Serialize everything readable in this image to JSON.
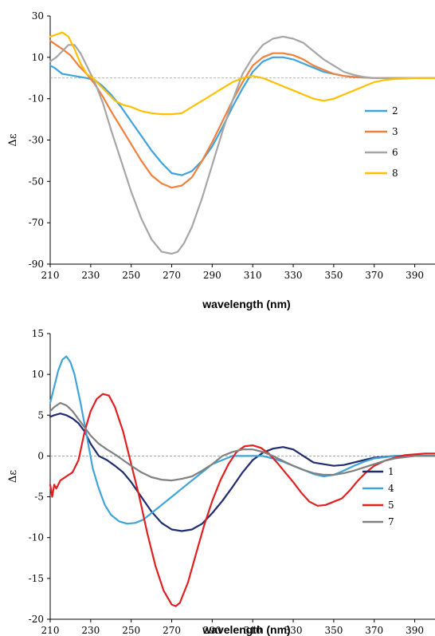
{
  "chart_data": [
    {
      "type": "line",
      "xlabel": "wavelength (nm)",
      "ylabel": "Δε",
      "xlim": [
        210,
        400
      ],
      "ylim": [
        -90,
        30
      ],
      "xticks": [
        210,
        230,
        250,
        270,
        290,
        310,
        330,
        350,
        370,
        390
      ],
      "yticks": [
        -90,
        -70,
        -50,
        -30,
        -10,
        10,
        30
      ],
      "zero_line": true,
      "legend_position": "right",
      "series": [
        {
          "name": "2",
          "color": "#3fa3dc",
          "x": [
            210,
            212,
            216,
            222,
            228,
            232,
            236,
            240,
            245,
            250,
            255,
            260,
            265,
            270,
            275,
            280,
            285,
            290,
            295,
            300,
            305,
            310,
            315,
            320,
            325,
            330,
            335,
            340,
            345,
            350,
            355,
            360,
            370,
            380,
            390,
            400
          ],
          "y": [
            6,
            5,
            2,
            1,
            0,
            -1,
            -4,
            -8,
            -14,
            -21,
            -28,
            -35,
            -41,
            -46,
            -47,
            -45,
            -40,
            -33,
            -24,
            -14,
            -5,
            3,
            8,
            10,
            10,
            9,
            7,
            5,
            3,
            2,
            1,
            0.5,
            0,
            0,
            0,
            0
          ]
        },
        {
          "name": "3",
          "color": "#f0803c",
          "x": [
            210,
            213,
            216,
            220,
            224,
            228,
            232,
            236,
            240,
            245,
            250,
            255,
            260,
            265,
            270,
            275,
            280,
            285,
            290,
            295,
            300,
            305,
            310,
            315,
            320,
            325,
            330,
            335,
            340,
            345,
            350,
            355,
            360,
            370,
            380,
            390,
            400
          ],
          "y": [
            18,
            16,
            14,
            11,
            6,
            2,
            -3,
            -9,
            -16,
            -24,
            -32,
            -40,
            -47,
            -51,
            -53,
            -52,
            -48,
            -40,
            -31,
            -21,
            -11,
            -2,
            6,
            10,
            12,
            12,
            11,
            9,
            6,
            4,
            2,
            1,
            0.5,
            0,
            0,
            0,
            0
          ]
        },
        {
          "name": "6",
          "color": "#a6a6a6",
          "x": [
            210,
            213,
            216,
            219,
            222,
            225,
            228,
            232,
            236,
            240,
            245,
            250,
            255,
            260,
            265,
            270,
            273,
            276,
            280,
            285,
            290,
            295,
            300,
            305,
            310,
            315,
            320,
            325,
            330,
            335,
            340,
            345,
            350,
            355,
            360,
            365,
            370,
            380,
            390,
            400
          ],
          "y": [
            8,
            10,
            13,
            16,
            16,
            12,
            6,
            -2,
            -12,
            -25,
            -40,
            -55,
            -68,
            -78,
            -84,
            -85,
            -84,
            -80,
            -72,
            -58,
            -42,
            -26,
            -11,
            2,
            10,
            16,
            19,
            20,
            19,
            17,
            13,
            9,
            6,
            3,
            1.5,
            0.5,
            0,
            0,
            0,
            0
          ]
        },
        {
          "name": "8",
          "color": "#ffc000",
          "x": [
            210,
            213,
            216,
            219,
            222,
            225,
            228,
            231,
            234,
            238,
            242,
            246,
            250,
            255,
            260,
            265,
            270,
            275,
            280,
            285,
            290,
            295,
            300,
            305,
            310,
            315,
            320,
            325,
            330,
            335,
            340,
            345,
            350,
            355,
            360,
            365,
            370,
            375,
            380,
            390,
            400
          ],
          "y": [
            20,
            21,
            22,
            20,
            14,
            7,
            2,
            0,
            -3,
            -7,
            -11,
            -13,
            -14,
            -16,
            -17,
            -17.5,
            -17.5,
            -17,
            -14,
            -11,
            -8,
            -5,
            -2,
            0,
            1,
            0,
            -2,
            -4,
            -6,
            -8,
            -10,
            -11,
            -10,
            -8,
            -6,
            -4,
            -2,
            -1,
            -0.5,
            0,
            0
          ]
        }
      ]
    },
    {
      "type": "line",
      "xlabel": "wavelength (nm)",
      "ylabel": "Δε",
      "xlim": [
        210,
        400
      ],
      "ylim": [
        -20,
        15
      ],
      "xticks": [
        210,
        230,
        250,
        270,
        290,
        310,
        330,
        350,
        370,
        390
      ],
      "yticks": [
        -20,
        -15,
        -10,
        -5,
        0,
        5,
        10,
        15
      ],
      "zero_line": true,
      "legend_position": "right",
      "series": [
        {
          "name": "1",
          "color": "#1f2d6e",
          "x": [
            210,
            212,
            215,
            218,
            221,
            224,
            227,
            230,
            234,
            238,
            242,
            246,
            250,
            255,
            260,
            265,
            270,
            275,
            280,
            285,
            290,
            295,
            300,
            305,
            310,
            315,
            320,
            325,
            330,
            335,
            340,
            345,
            350,
            355,
            360,
            365,
            370,
            375,
            380,
            390,
            400
          ],
          "y": [
            4.8,
            5,
            5.2,
            5,
            4.6,
            4,
            3,
            1.5,
            0,
            -0.5,
            -1.2,
            -2,
            -3.2,
            -5,
            -6.8,
            -8.2,
            -9,
            -9.2,
            -9,
            -8.3,
            -7,
            -5.5,
            -3.8,
            -2,
            -0.5,
            0.4,
            0.9,
            1.1,
            0.8,
            0,
            -0.8,
            -1,
            -1.2,
            -1.1,
            -0.8,
            -0.5,
            -0.2,
            -0.1,
            0,
            0,
            0
          ]
        },
        {
          "name": "4",
          "color": "#3fa3dc",
          "x": [
            210,
            212,
            214,
            216,
            218,
            220,
            222,
            225,
            228,
            231,
            234,
            237,
            240,
            244,
            248,
            252,
            256,
            260,
            265,
            270,
            275,
            280,
            285,
            290,
            295,
            300,
            305,
            310,
            315,
            320,
            325,
            330,
            335,
            340,
            345,
            350,
            355,
            360,
            365,
            370,
            380,
            390,
            400
          ],
          "y": [
            6.5,
            8.5,
            10.5,
            11.8,
            12.2,
            11.5,
            10,
            6.5,
            2.5,
            -1.5,
            -4,
            -6,
            -7.2,
            -8,
            -8.3,
            -8.2,
            -7.8,
            -7,
            -6,
            -5,
            -4,
            -3,
            -2,
            -1,
            -0.5,
            0,
            0,
            0,
            0,
            -0.3,
            -0.7,
            -1.2,
            -1.7,
            -2.2,
            -2.5,
            -2.3,
            -1.8,
            -1.2,
            -0.7,
            -0.3,
            0,
            0,
            0
          ]
        },
        {
          "name": "5",
          "color": "#e02020",
          "x": [
            210,
            211,
            212,
            213,
            215,
            218,
            221,
            224,
            227,
            230,
            233,
            236,
            239,
            242,
            246,
            250,
            254,
            258,
            262,
            266,
            270,
            272,
            274,
            278,
            282,
            286,
            290,
            294,
            298,
            302,
            306,
            310,
            314,
            318,
            322,
            326,
            330,
            334,
            338,
            342,
            346,
            350,
            354,
            358,
            362,
            366,
            370,
            375,
            380,
            385,
            390,
            395,
            400
          ],
          "y": [
            -3.5,
            -5,
            -3.5,
            -4,
            -3,
            -2.5,
            -2,
            -0.5,
            3,
            5.5,
            7,
            7.6,
            7.4,
            6,
            3,
            -1,
            -5,
            -9.5,
            -13.5,
            -16.5,
            -18.2,
            -18.4,
            -18,
            -15.5,
            -12,
            -8.5,
            -5.5,
            -3,
            -1,
            0.5,
            1.2,
            1.3,
            1,
            0.3,
            -0.8,
            -2,
            -3.2,
            -4.5,
            -5.6,
            -6.1,
            -6,
            -5.6,
            -5.2,
            -4.2,
            -3,
            -2,
            -1.2,
            -0.6,
            -0.2,
            0.1,
            0.2,
            0.3,
            0.3
          ]
        },
        {
          "name": "7",
          "color": "#808080",
          "x": [
            210,
            212,
            215,
            218,
            221,
            224,
            227,
            230,
            234,
            238,
            242,
            246,
            250,
            255,
            260,
            265,
            270,
            275,
            280,
            285,
            290,
            295,
            300,
            305,
            310,
            315,
            320,
            325,
            330,
            335,
            340,
            345,
            350,
            355,
            360,
            365,
            370,
            375,
            380,
            390,
            400
          ],
          "y": [
            5.5,
            6,
            6.5,
            6.2,
            5.5,
            4.5,
            3.5,
            2.5,
            1.5,
            0.8,
            0.2,
            -0.5,
            -1.2,
            -2,
            -2.6,
            -2.9,
            -3,
            -2.8,
            -2.5,
            -1.8,
            -1,
            0,
            0.5,
            0.8,
            0.8,
            0.5,
            0,
            -0.6,
            -1.2,
            -1.7,
            -2.1,
            -2.3,
            -2.3,
            -2.1,
            -1.8,
            -1.4,
            -1,
            -0.6,
            -0.3,
            0,
            0
          ]
        }
      ]
    }
  ]
}
